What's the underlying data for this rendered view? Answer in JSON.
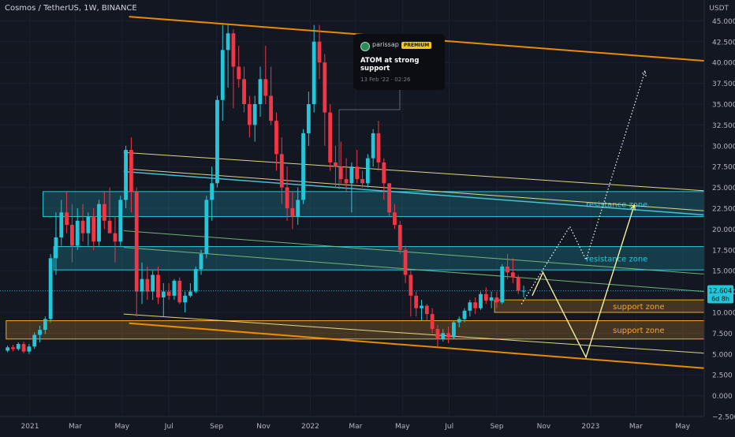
{
  "header": {
    "title": "Cosmos / TetherUS, 1W, BINANCE"
  },
  "axis_unit": "USDT",
  "price_label": {
    "value": "12.604",
    "countdown": "6d 8h"
  },
  "annotation": {
    "author": "parissap",
    "badge": "PREMIUM",
    "title": "ATOM at strong support",
    "date": "13 Feb '22 · 02:26"
  },
  "zones": [
    {
      "label": "resistance zone",
      "color": "#26c6da",
      "y_low": 21.5,
      "y_high": 24.5,
      "x_from": "2021-01-18",
      "x_to": "2023-06-05",
      "label_at": "2022-12-26"
    },
    {
      "label": "resistance zone",
      "color": "#26c6da",
      "y_low": 15.1,
      "y_high": 17.9,
      "x_from": "2021-02-01",
      "x_to": "2023-06-05",
      "label_at": "2022-12-26"
    },
    {
      "label": "support zone",
      "color": "#f5a623",
      "y_low": 10.0,
      "y_high": 11.5,
      "x_from": "2022-08-29",
      "x_to": "2023-06-05",
      "label_at": "2023-01-30"
    },
    {
      "label": "support zone",
      "color": "#f5a623",
      "y_low": 6.8,
      "y_high": 9.0,
      "x_from": "2020-12-01",
      "x_to": "2023-06-05",
      "label_at": "2023-01-30"
    }
  ],
  "colors": {
    "up": "#26c6da",
    "down": "#f23645",
    "background": "#131722",
    "orange_channel": "#ff9800",
    "yellow_line": "#f5e98f",
    "cyan_line": "#4dd0e1",
    "green_line": "#7bc47f"
  },
  "chart_data": {
    "type": "candlestick",
    "title": "Cosmos / TetherUS, 1W, BINANCE",
    "ylabel": "USDT",
    "ylim": [
      -2.5,
      47.5
    ],
    "xlim": [
      "2020-11-23",
      "2023-05-29"
    ],
    "x_ticks": [
      {
        "date": "2021-01-01",
        "label": "2021"
      },
      {
        "date": "2021-03-01",
        "label": "Mar"
      },
      {
        "date": "2021-05-01",
        "label": "May"
      },
      {
        "date": "2021-07-01",
        "label": "Jul"
      },
      {
        "date": "2021-09-01",
        "label": "Sep"
      },
      {
        "date": "2021-11-01",
        "label": "Nov"
      },
      {
        "date": "2022-01-01",
        "label": "2022"
      },
      {
        "date": "2022-03-01",
        "label": "Mar"
      },
      {
        "date": "2022-05-01",
        "label": "May"
      },
      {
        "date": "2022-07-01",
        "label": "Jul"
      },
      {
        "date": "2022-09-01",
        "label": "Sep"
      },
      {
        "date": "2022-11-01",
        "label": "Nov"
      },
      {
        "date": "2023-01-01",
        "label": "2023"
      },
      {
        "date": "2023-03-01",
        "label": "Mar"
      },
      {
        "date": "2023-05-01",
        "label": "May"
      }
    ],
    "y_ticks": [
      "−2.500",
      "0.000",
      "2.500",
      "5.000",
      "7.500",
      "10.000",
      "12.500",
      "15.000",
      "17.500",
      "20.000",
      "22.500",
      "25.000",
      "27.500",
      "30.000",
      "32.500",
      "35.000",
      "37.500",
      "40.000",
      "42.500",
      "45.000"
    ],
    "last_price": 12.604,
    "candles": [
      [
        "2020-11-30",
        5.4,
        6.0,
        5.2,
        5.8
      ],
      [
        "2020-12-07",
        5.8,
        6.1,
        5.3,
        5.6
      ],
      [
        "2020-12-14",
        5.6,
        6.4,
        5.4,
        6.2
      ],
      [
        "2020-12-21",
        6.2,
        6.5,
        5.1,
        5.3
      ],
      [
        "2020-12-28",
        5.3,
        6.2,
        5.0,
        5.9
      ],
      [
        "2021-01-04",
        5.9,
        7.6,
        5.6,
        7.3
      ],
      [
        "2021-01-11",
        7.3,
        8.4,
        6.4,
        7.9
      ],
      [
        "2021-01-18",
        7.9,
        9.5,
        7.4,
        9.2
      ],
      [
        "2021-01-25",
        9.2,
        17.0,
        8.8,
        16.5
      ],
      [
        "2021-02-01",
        16.5,
        22.0,
        14.5,
        19.0
      ],
      [
        "2021-02-08",
        19.0,
        23.5,
        18.0,
        22.0
      ],
      [
        "2021-02-15",
        22.0,
        24.5,
        19.5,
        20.5
      ],
      [
        "2021-02-22",
        20.5,
        23.0,
        16.0,
        18.0
      ],
      [
        "2021-03-01",
        18.0,
        22.5,
        17.5,
        21.0
      ],
      [
        "2021-03-08",
        21.0,
        23.0,
        18.5,
        19.5
      ],
      [
        "2021-03-15",
        19.5,
        22.0,
        18.0,
        21.5
      ],
      [
        "2021-03-22",
        21.5,
        22.5,
        17.5,
        18.5
      ],
      [
        "2021-03-29",
        18.5,
        23.5,
        18.0,
        23.0
      ],
      [
        "2021-04-05",
        23.0,
        24.5,
        20.0,
        21.0
      ],
      [
        "2021-04-12",
        21.0,
        25.0,
        19.5,
        19.5
      ],
      [
        "2021-04-19",
        19.5,
        21.5,
        16.0,
        18.5
      ],
      [
        "2021-04-26",
        18.5,
        24.0,
        18.0,
        23.5
      ],
      [
        "2021-05-03",
        23.5,
        30.0,
        22.5,
        29.5
      ],
      [
        "2021-05-10",
        29.5,
        31.0,
        22.0,
        24.5
      ],
      [
        "2021-05-17",
        24.5,
        25.0,
        9.5,
        12.5
      ],
      [
        "2021-05-24",
        12.5,
        16.0,
        11.0,
        14.0
      ],
      [
        "2021-05-31",
        14.0,
        15.5,
        11.5,
        12.5
      ],
      [
        "2021-06-07",
        12.5,
        15.0,
        11.5,
        14.5
      ],
      [
        "2021-06-14",
        14.5,
        15.5,
        11.0,
        11.8
      ],
      [
        "2021-06-21",
        11.8,
        13.5,
        9.5,
        12.5
      ],
      [
        "2021-06-28",
        12.5,
        13.5,
        11.5,
        12.0
      ],
      [
        "2021-07-05",
        12.0,
        14.0,
        11.5,
        13.8
      ],
      [
        "2021-07-12",
        13.8,
        14.2,
        11.0,
        11.2
      ],
      [
        "2021-07-19",
        11.2,
        12.5,
        10.0,
        12.0
      ],
      [
        "2021-07-26",
        12.0,
        13.5,
        11.8,
        12.5
      ],
      [
        "2021-08-02",
        12.5,
        15.5,
        12.3,
        15.2
      ],
      [
        "2021-08-09",
        15.2,
        17.5,
        14.5,
        17.0
      ],
      [
        "2021-08-16",
        17.0,
        24.0,
        16.5,
        23.5
      ],
      [
        "2021-08-23",
        23.5,
        27.5,
        21.0,
        25.5
      ],
      [
        "2021-08-30",
        25.5,
        36.0,
        25.0,
        35.5
      ],
      [
        "2021-09-06",
        35.5,
        44.5,
        33.0,
        41.5
      ],
      [
        "2021-09-13",
        41.5,
        44.5,
        37.0,
        43.5
      ],
      [
        "2021-09-20",
        43.5,
        44.0,
        34.5,
        39.5
      ],
      [
        "2021-09-27",
        39.5,
        42.0,
        37.0,
        38.0
      ],
      [
        "2021-10-04",
        38.0,
        39.5,
        34.0,
        35.0
      ],
      [
        "2021-10-11",
        35.0,
        36.0,
        31.0,
        32.5
      ],
      [
        "2021-10-18",
        32.5,
        36.0,
        30.5,
        35.0
      ],
      [
        "2021-10-25",
        35.0,
        39.5,
        33.5,
        38.0
      ],
      [
        "2021-11-01",
        38.0,
        42.0,
        35.0,
        36.0
      ],
      [
        "2021-11-08",
        36.0,
        39.5,
        32.5,
        33.0
      ],
      [
        "2021-11-15",
        33.0,
        34.0,
        27.0,
        29.0
      ],
      [
        "2021-11-22",
        29.0,
        31.0,
        23.0,
        25.0
      ],
      [
        "2021-11-29",
        25.0,
        27.5,
        21.0,
        22.5
      ],
      [
        "2021-12-06",
        22.5,
        24.5,
        20.0,
        21.5
      ],
      [
        "2021-12-13",
        21.5,
        25.0,
        20.5,
        23.5
      ],
      [
        "2021-12-20",
        23.5,
        32.0,
        23.0,
        31.5
      ],
      [
        "2021-12-27",
        31.5,
        36.5,
        30.0,
        35.0
      ],
      [
        "2022-01-03",
        35.0,
        44.5,
        34.0,
        42.5
      ],
      [
        "2022-01-10",
        42.5,
        44.5,
        38.0,
        40.0
      ],
      [
        "2022-01-17",
        40.0,
        41.0,
        30.0,
        34.0
      ],
      [
        "2022-01-24",
        34.0,
        35.0,
        27.0,
        28.0
      ],
      [
        "2022-01-31",
        28.0,
        30.0,
        25.0,
        27.5
      ],
      [
        "2022-02-07",
        27.5,
        30.5,
        25.5,
        26.0
      ],
      [
        "2022-02-14",
        26.0,
        28.5,
        24.5,
        25.5
      ],
      [
        "2022-02-21",
        25.5,
        28.0,
        22.0,
        27.5
      ],
      [
        "2022-02-28",
        27.5,
        29.5,
        25.5,
        26.0
      ],
      [
        "2022-03-07",
        26.0,
        27.0,
        25.0,
        25.5
      ],
      [
        "2022-03-14",
        25.5,
        29.0,
        25.0,
        28.5
      ],
      [
        "2022-03-21",
        28.5,
        32.0,
        27.5,
        31.5
      ],
      [
        "2022-03-28",
        31.5,
        33.0,
        27.0,
        28.0
      ],
      [
        "2022-04-04",
        28.0,
        28.5,
        23.5,
        25.5
      ],
      [
        "2022-04-11",
        25.5,
        25.5,
        21.5,
        22.0
      ],
      [
        "2022-04-18",
        22.0,
        23.0,
        20.0,
        20.5
      ],
      [
        "2022-04-25",
        20.5,
        21.0,
        17.0,
        17.5
      ],
      [
        "2022-05-02",
        17.5,
        18.0,
        13.5,
        14.5
      ],
      [
        "2022-05-09",
        14.5,
        15.0,
        9.5,
        12.0
      ],
      [
        "2022-05-16",
        12.0,
        12.5,
        9.5,
        10.5
      ],
      [
        "2022-05-23",
        10.5,
        11.5,
        9.0,
        10.8
      ],
      [
        "2022-05-30",
        10.8,
        11.0,
        9.0,
        9.8
      ],
      [
        "2022-06-06",
        9.8,
        10.5,
        7.5,
        8.0
      ],
      [
        "2022-06-13",
        8.0,
        8.5,
        5.8,
        6.8
      ],
      [
        "2022-06-20",
        6.8,
        8.0,
        6.5,
        7.5
      ],
      [
        "2022-06-27",
        7.5,
        8.3,
        6.3,
        7.0
      ],
      [
        "2022-07-04",
        7.0,
        9.0,
        6.8,
        8.8
      ],
      [
        "2022-07-11",
        8.8,
        9.5,
        8.2,
        9.2
      ],
      [
        "2022-07-18",
        9.2,
        10.5,
        8.8,
        10.2
      ],
      [
        "2022-07-25",
        10.2,
        11.5,
        9.5,
        11.2
      ],
      [
        "2022-08-01",
        11.2,
        11.8,
        9.8,
        10.5
      ],
      [
        "2022-08-08",
        10.5,
        12.5,
        10.3,
        12.2
      ],
      [
        "2022-08-15",
        12.2,
        13.0,
        11.0,
        11.4
      ],
      [
        "2022-08-22",
        11.4,
        12.5,
        10.5,
        11.8
      ],
      [
        "2022-08-29",
        11.8,
        12.5,
        10.5,
        11.2
      ],
      [
        "2022-09-05",
        11.2,
        15.8,
        11.0,
        15.5
      ],
      [
        "2022-09-12",
        15.5,
        17.0,
        14.0,
        14.8
      ],
      [
        "2022-09-19",
        14.8,
        16.5,
        13.5,
        14.2
      ],
      [
        "2022-09-26",
        14.2,
        14.5,
        12.2,
        12.6
      ],
      [
        "2022-10-03",
        12.6,
        13.2,
        11.8,
        12.6
      ]
    ],
    "channels": [
      {
        "name": "orange_top",
        "points": [
          [
            "2021-05-10",
            45.5
          ],
          [
            "2023-05-29",
            40.2
          ]
        ],
        "color": "#ff9800",
        "width": 2
      },
      {
        "name": "orange_bottom",
        "points": [
          [
            "2021-05-10",
            8.7
          ],
          [
            "2023-05-29",
            3.3
          ]
        ],
        "color": "#ff9800",
        "width": 2
      },
      {
        "name": "yellow_upper",
        "points": [
          [
            "2021-05-03",
            29.2
          ],
          [
            "2023-05-29",
            24.6
          ]
        ],
        "color": "#f5e98f",
        "width": 1
      },
      {
        "name": "yellow_upper2",
        "points": [
          [
            "2021-05-10",
            27.2
          ],
          [
            "2023-05-29",
            22.2
          ]
        ],
        "color": "#f5e98f",
        "width": 1
      },
      {
        "name": "cyan_upper",
        "points": [
          [
            "2021-05-03",
            26.9
          ],
          [
            "2023-05-29",
            21.7
          ]
        ],
        "color": "#4dd0e1",
        "width": 1.5
      },
      {
        "name": "green_mid",
        "points": [
          [
            "2021-05-03",
            19.8
          ],
          [
            "2023-05-29",
            14.6
          ]
        ],
        "color": "#7bc47f",
        "width": 1
      },
      {
        "name": "green_mid2",
        "points": [
          [
            "2021-05-03",
            17.8
          ],
          [
            "2023-05-29",
            12.5
          ]
        ],
        "color": "#7bc47f",
        "width": 1
      },
      {
        "name": "yellow_lower",
        "points": [
          [
            "2021-05-03",
            9.8
          ],
          [
            "2023-05-29",
            5.1
          ]
        ],
        "color": "#f5e98f",
        "width": 1
      }
    ],
    "projections": [
      {
        "name": "solid_path",
        "style": "solid",
        "color": "#f5f0a0",
        "points": [
          [
            "2022-10-17",
            12.0
          ],
          [
            "2022-10-31",
            14.8
          ],
          [
            "2022-12-26",
            4.6
          ],
          [
            "2023-02-27",
            22.9
          ]
        ]
      },
      {
        "name": "dotted_path",
        "style": "dotted",
        "color": "#ffffff",
        "points": [
          [
            "2022-10-03",
            11.0
          ],
          [
            "2022-12-05",
            20.3
          ],
          [
            "2022-12-26",
            16.3
          ],
          [
            "2023-03-13",
            39.0
          ]
        ]
      }
    ]
  }
}
